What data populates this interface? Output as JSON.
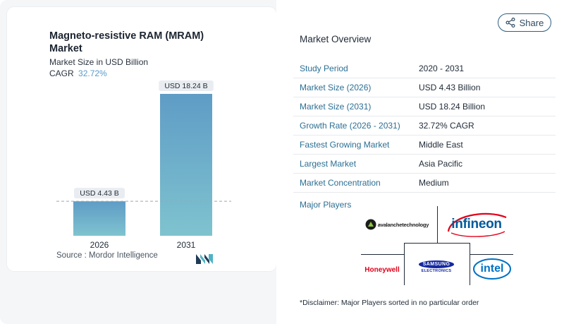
{
  "chart_data": {
    "type": "bar",
    "title": "Magneto-resistive RAM (MRAM) Market",
    "subtitle": "Market Size in USD Billion",
    "cagr_label": "CAGR",
    "cagr_value": "32.72%",
    "categories": [
      "2026",
      "2031"
    ],
    "values": [
      4.43,
      18.24
    ],
    "value_labels": [
      "USD 4.43 B",
      "USD 18.24 B"
    ],
    "ylim": [
      0,
      18.24
    ],
    "colors": [
      "#5f9cc6",
      "#7fc3cf"
    ],
    "xlabel": "",
    "ylabel": "",
    "grid": false,
    "reference_line": "dashed"
  },
  "source": {
    "text": "Source : Mordor Intelligence",
    "logo_icon": "mordor-intelligence-logo"
  },
  "share": {
    "label": "Share",
    "icon": "share-icon"
  },
  "overview": {
    "title": "Market Overview",
    "rows": [
      {
        "key": "Study Period",
        "value": "2020 - 2031"
      },
      {
        "key": "Market Size (2026)",
        "value": "USD 4.43 Billion"
      },
      {
        "key": "Market Size (2031)",
        "value": "USD 18.24 Billion"
      },
      {
        "key": "Growth Rate (2026 - 2031)",
        "value": "32.72% CAGR"
      },
      {
        "key": "Fastest Growing Market",
        "value": "Middle East"
      },
      {
        "key": "Largest Market",
        "value": "Asia Pacific"
      },
      {
        "key": "Market Concentration",
        "value": "Medium"
      }
    ]
  },
  "players": {
    "label": "Major Players",
    "logos": {
      "avalanche": "avalanchetechnology",
      "infineon": "infineon",
      "honeywell": "Honeywell",
      "samsung_top": "SAMSUNG",
      "samsung_bottom": "ELECTRONICS",
      "intel": "intel"
    }
  },
  "disclaimer": "*Disclaimer: Major Players sorted in no particular order"
}
